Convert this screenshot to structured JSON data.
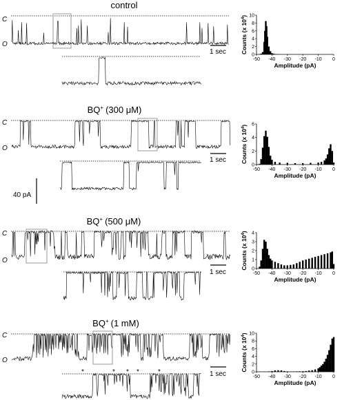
{
  "figure": {
    "state_closed": "C",
    "state_open": "O",
    "time_scale_label": "1 sec",
    "current_scale_label": "40 pA"
  },
  "conditions": [
    {
      "title": "control",
      "superscript": "",
      "concentration": ""
    },
    {
      "title": "BQ",
      "superscript": "+",
      "concentration": "(300 μM)"
    },
    {
      "title": "BQ",
      "superscript": "+",
      "concentration": "(500 μM)"
    },
    {
      "title": "BQ",
      "superscript": "+",
      "concentration": "(1 mM)"
    }
  ],
  "chart_data": [
    {
      "type": "bar",
      "condition": "control",
      "xlabel": "Amplitude (pA)",
      "ylabel": "Counts (x 10",
      "ylabel_exp": "4",
      "xlim": [
        -50,
        0
      ],
      "ylim": [
        0,
        10
      ],
      "xticks": [
        -50,
        -40,
        -30,
        -20,
        -10,
        0
      ],
      "yticks": [
        0,
        2,
        4,
        6,
        8,
        10
      ],
      "x": [
        -48,
        -47,
        -46,
        -45,
        -44.5,
        -44,
        -43.5,
        -43,
        -42,
        -41,
        -40,
        -39,
        -38,
        -37,
        -36,
        -35
      ],
      "values": [
        0.05,
        0.2,
        0.6,
        3.2,
        6.0,
        8.5,
        7.2,
        4.5,
        2.0,
        0.8,
        0.3,
        0.15,
        0.08,
        0.05,
        0.02,
        0.01
      ]
    },
    {
      "type": "bar",
      "condition": "BQ+ (300 μM)",
      "xlabel": "Amplitude (pA)",
      "ylabel": "Counts (x 10",
      "ylabel_exp": "4",
      "xlim": [
        -50,
        0
      ],
      "ylim": [
        0,
        6
      ],
      "xticks": [
        -50,
        -40,
        -30,
        -20,
        -10,
        0
      ],
      "yticks": [
        0,
        2,
        4,
        6
      ],
      "x": [
        -48,
        -47,
        -46,
        -45,
        -44,
        -43,
        -42,
        -41,
        -40,
        -38,
        -35,
        -30,
        -25,
        -20,
        -15,
        -10,
        -8,
        -6,
        -5,
        -4,
        -3,
        -2,
        -1,
        0
      ],
      "values": [
        0.1,
        0.8,
        2.5,
        4.2,
        5.0,
        4.1,
        2.6,
        1.3,
        0.7,
        0.4,
        0.3,
        0.25,
        0.2,
        0.2,
        0.25,
        0.3,
        0.4,
        0.6,
        0.9,
        1.5,
        2.4,
        3.0,
        2.0,
        0.3
      ]
    },
    {
      "type": "bar",
      "condition": "BQ+ (500 μM)",
      "xlabel": "Amplitude (pA)",
      "ylabel": "Counts (x 10",
      "ylabel_exp": "4",
      "xlim": [
        -50,
        0
      ],
      "ylim": [
        0,
        4
      ],
      "xticks": [
        -50,
        -40,
        -30,
        -20,
        -10,
        0
      ],
      "yticks": [
        0,
        1,
        2,
        3,
        4
      ],
      "x": [
        -48,
        -47,
        -46,
        -45,
        -44,
        -43,
        -42,
        -41,
        -40,
        -38,
        -36,
        -34,
        -32,
        -30,
        -28,
        -26,
        -24,
        -22,
        -20,
        -18,
        -16,
        -14,
        -12,
        -10,
        -8,
        -6,
        -4,
        -2,
        -1,
        0
      ],
      "values": [
        0.2,
        0.9,
        2.2,
        3.2,
        3.0,
        2.2,
        1.5,
        1.1,
        0.9,
        0.75,
        0.6,
        0.45,
        0.35,
        0.35,
        0.4,
        0.45,
        0.6,
        0.75,
        0.9,
        1.0,
        1.1,
        1.2,
        1.3,
        1.4,
        1.5,
        1.6,
        1.7,
        1.8,
        1.9,
        0.5
      ]
    },
    {
      "type": "bar",
      "condition": "BQ+ (1 mM)",
      "xlabel": "Amplitude (pA)",
      "ylabel": "Counts (x 10",
      "ylabel_exp": "4",
      "xlim": [
        -50,
        0
      ],
      "ylim": [
        0,
        10
      ],
      "xticks": [
        -50,
        -40,
        -30,
        -20,
        -10,
        0
      ],
      "yticks": [
        0,
        2,
        4,
        6,
        8,
        10
      ],
      "x": [
        -48,
        -45,
        -42,
        -40,
        -38,
        -36,
        -34,
        -32,
        -30,
        -28,
        -26,
        -24,
        -22,
        -20,
        -18,
        -16,
        -14,
        -12,
        -10,
        -9,
        -8,
        -7,
        -6,
        -5,
        -4,
        -3,
        -2,
        -1,
        0
      ],
      "values": [
        0.05,
        0.05,
        0.1,
        0.2,
        0.35,
        0.4,
        0.35,
        0.2,
        0.1,
        0.08,
        0.08,
        0.1,
        0.12,
        0.15,
        0.2,
        0.3,
        0.4,
        0.6,
        0.9,
        1.2,
        1.6,
        2.0,
        2.6,
        3.4,
        4.4,
        5.6,
        7.0,
        8.6,
        9.0
      ]
    }
  ]
}
